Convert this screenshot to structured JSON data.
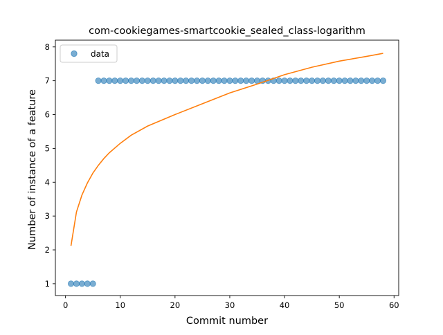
{
  "chart_data": {
    "type": "scatter",
    "title": "com-cookiegames-smartcookie_sealed_class-logarithm",
    "xlabel": "Commit number",
    "ylabel": "Number of instance of a feature",
    "xlim": [
      -1.85,
      60.85
    ],
    "ylim": [
      0.65,
      8.2
    ],
    "xticks": [
      0,
      10,
      20,
      30,
      40,
      50,
      60
    ],
    "yticks": [
      1,
      2,
      3,
      4,
      5,
      6,
      7,
      8
    ],
    "grid": false,
    "legend": {
      "placement": "upper-left",
      "entries": [
        "data"
      ]
    },
    "series": [
      {
        "name": "data",
        "kind": "scatter",
        "color": "#1f77b4",
        "x": [
          1,
          2,
          3,
          4,
          5,
          6,
          7,
          8,
          9,
          10,
          11,
          12,
          13,
          14,
          15,
          16,
          17,
          18,
          19,
          20,
          21,
          22,
          23,
          24,
          25,
          26,
          27,
          28,
          29,
          30,
          31,
          32,
          33,
          34,
          35,
          36,
          37,
          38,
          39,
          40,
          41,
          42,
          43,
          44,
          45,
          46,
          47,
          48,
          49,
          50,
          51,
          52,
          53,
          54,
          55,
          56,
          57,
          58
        ],
        "y": [
          1,
          1,
          1,
          1,
          1,
          7,
          7,
          7,
          7,
          7,
          7,
          7,
          7,
          7,
          7,
          7,
          7,
          7,
          7,
          7,
          7,
          7,
          7,
          7,
          7,
          7,
          7,
          7,
          7,
          7,
          7,
          7,
          7,
          7,
          7,
          7,
          7,
          7,
          7,
          7,
          7,
          7,
          7,
          7,
          7,
          7,
          7,
          7,
          7,
          7,
          7,
          7,
          7,
          7,
          7,
          7,
          7,
          7
        ]
      },
      {
        "kind": "line",
        "color": "#ff7f0e",
        "x": [
          1,
          2,
          3,
          4,
          5,
          6,
          7,
          8,
          10,
          12,
          15,
          20,
          25,
          30,
          35,
          40,
          45,
          50,
          55,
          58
        ],
        "y": [
          2.12,
          3.12,
          3.62,
          3.98,
          4.27,
          4.5,
          4.7,
          4.87,
          5.15,
          5.39,
          5.66,
          6.0,
          6.32,
          6.64,
          6.9,
          7.18,
          7.4,
          7.58,
          7.72,
          7.81
        ]
      }
    ]
  }
}
